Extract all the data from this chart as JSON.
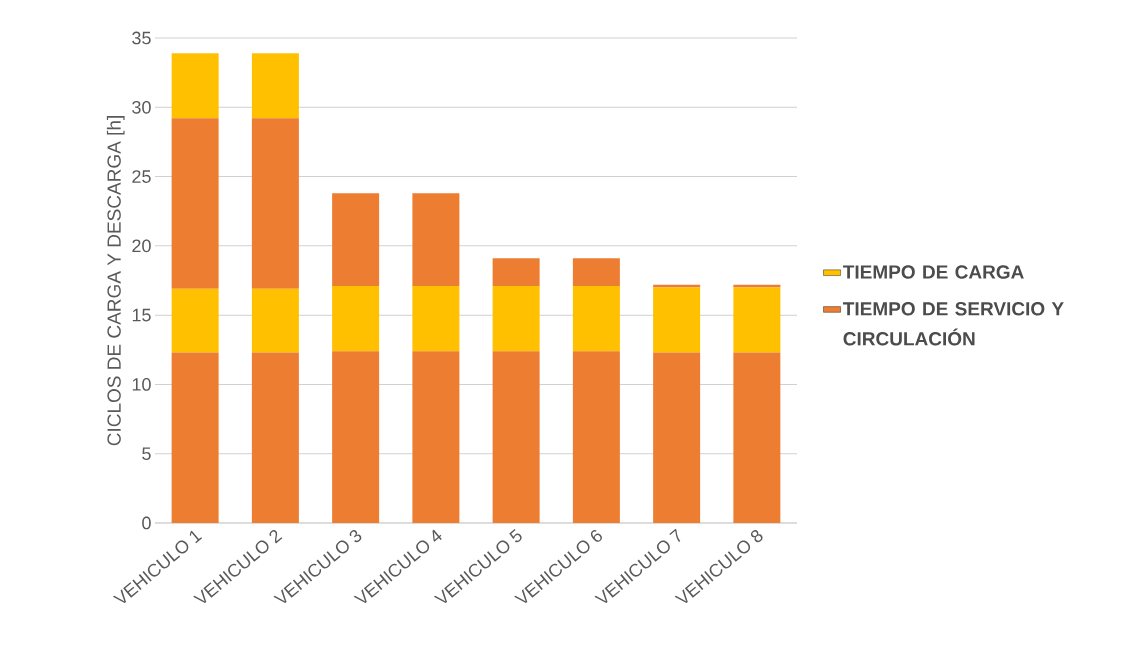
{
  "chart_data": {
    "type": "bar",
    "stacked": true,
    "ylabel": "CICLOS DE CARGA Y DESCARGA [h]",
    "categories": [
      "VEHICULO 1",
      "VEHICULO 2",
      "VEHICULO 3",
      "VEHICULO 4",
      "VEHICULO 5",
      "VEHICULO 6",
      "VEHICULO 7",
      "VEHICULO 8"
    ],
    "series": [
      {
        "name": "TIEMPO DE SERVICIO Y CIRCULACIÓN",
        "color": "#ed7d31",
        "values": [
          12.3,
          12.3,
          12.4,
          12.4,
          12.4,
          12.4,
          12.3,
          12.3
        ]
      },
      {
        "name": "TIEMPO DE CARGA",
        "color": "#ffc000",
        "values": [
          4.6,
          4.6,
          4.7,
          4.7,
          4.7,
          4.7,
          4.7,
          4.7
        ]
      },
      {
        "color": "#ed7d31",
        "values": [
          12.3,
          12.3,
          6.7,
          6.7,
          2.0,
          2.0,
          0.2,
          0.2
        ]
      },
      {
        "color": "#ffc000",
        "values": [
          4.7,
          4.7,
          null,
          null,
          null,
          null,
          null,
          null
        ]
      }
    ],
    "ylim": [
      0,
      35
    ],
    "yticks": [
      0,
      5,
      10,
      15,
      20,
      25,
      30,
      35
    ],
    "grid": "y",
    "legend": "right"
  }
}
